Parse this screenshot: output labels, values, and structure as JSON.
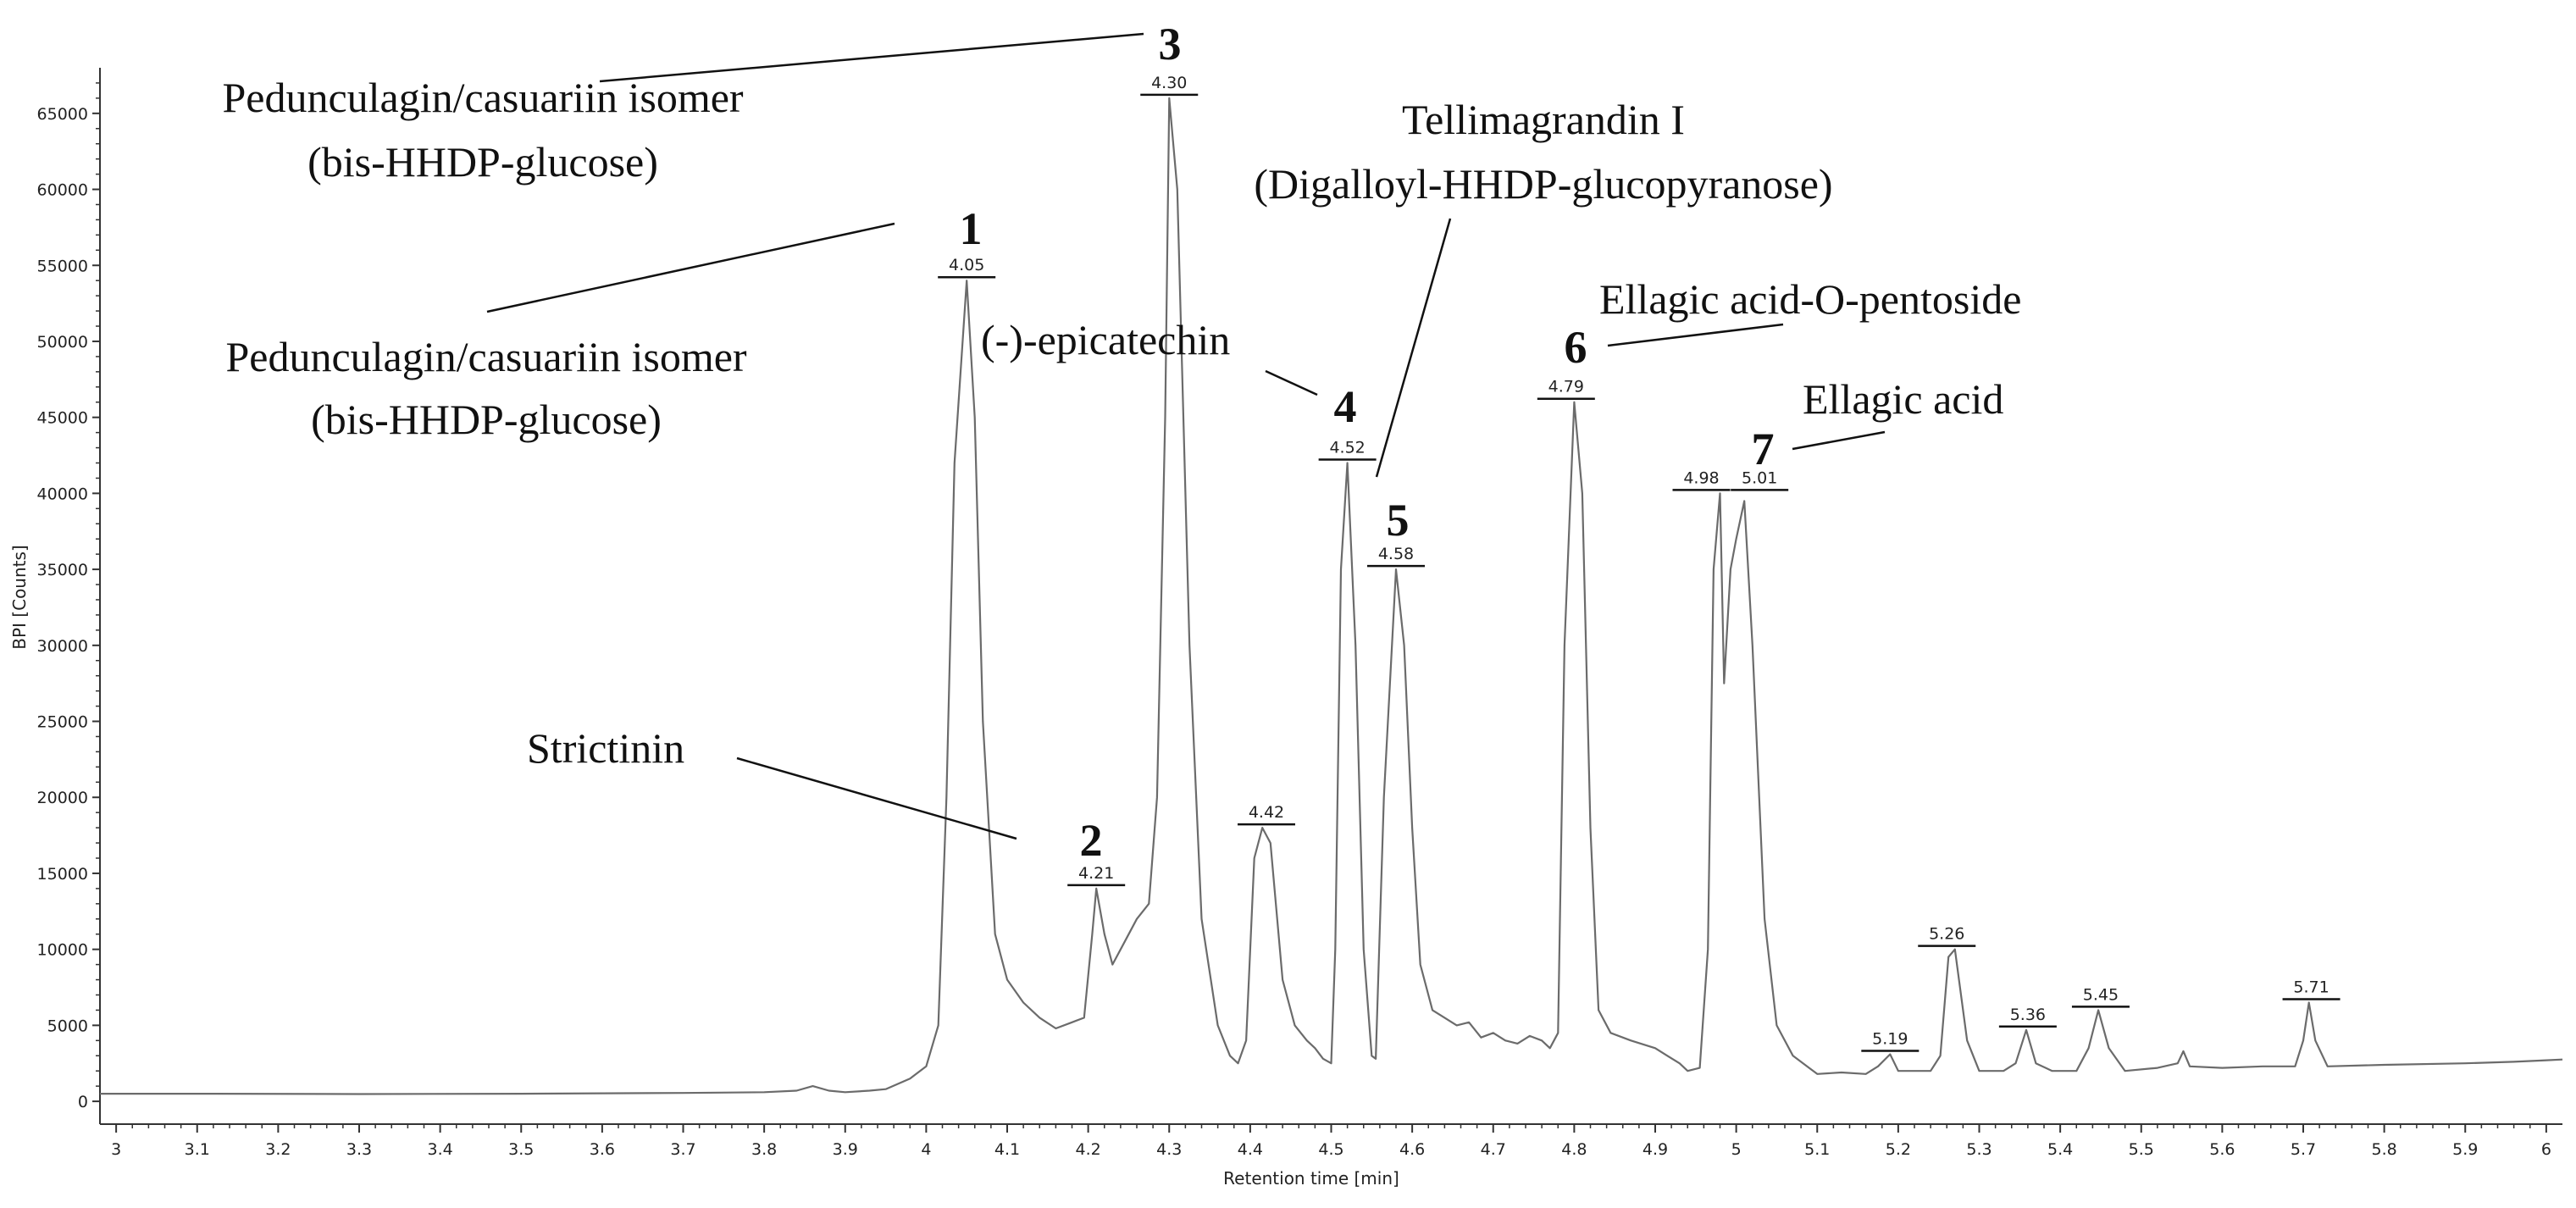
{
  "chart_data": {
    "type": "line",
    "xlabel": "Retention time [min]",
    "ylabel": "BPI [Counts]",
    "xlim": [
      2.98,
      6.02
    ],
    "ylim": [
      -1500,
      68000
    ],
    "x_ticks": [
      "3",
      "3.1",
      "3.2",
      "3.3",
      "3.4",
      "3.5",
      "3.6",
      "3.7",
      "3.8",
      "3.9",
      "4",
      "4.1",
      "4.2",
      "4.3",
      "4.4",
      "4.5",
      "4.6",
      "4.7",
      "4.8",
      "4.9",
      "5",
      "5.1",
      "5.2",
      "5.3",
      "5.4",
      "5.5",
      "5.6",
      "5.7",
      "5.8",
      "5.9",
      "6"
    ],
    "y_ticks": [
      "0",
      "5000",
      "10000",
      "15000",
      "20000",
      "25000",
      "30000",
      "35000",
      "40000",
      "45000",
      "50000",
      "55000",
      "60000",
      "65000"
    ],
    "series": [
      {
        "points": [
          [
            2.98,
            500
          ],
          [
            3.1,
            500
          ],
          [
            3.3,
            480
          ],
          [
            3.5,
            500
          ],
          [
            3.7,
            550
          ],
          [
            3.8,
            600
          ],
          [
            3.84,
            700
          ],
          [
            3.86,
            1000
          ],
          [
            3.88,
            700
          ],
          [
            3.9,
            600
          ],
          [
            3.93,
            700
          ],
          [
            3.95,
            800
          ],
          [
            3.98,
            1500
          ],
          [
            4.0,
            2300
          ],
          [
            4.015,
            5000
          ],
          [
            4.025,
            20000
          ],
          [
            4.035,
            42000
          ],
          [
            4.05,
            54000
          ],
          [
            4.06,
            45000
          ],
          [
            4.07,
            25000
          ],
          [
            4.085,
            11000
          ],
          [
            4.1,
            8000
          ],
          [
            4.12,
            6500
          ],
          [
            4.14,
            5500
          ],
          [
            4.16,
            4800
          ],
          [
            4.18,
            5200
          ],
          [
            4.195,
            5500
          ],
          [
            4.205,
            11000
          ],
          [
            4.21,
            14000
          ],
          [
            4.22,
            11000
          ],
          [
            4.23,
            9000
          ],
          [
            4.245,
            10500
          ],
          [
            4.26,
            12000
          ],
          [
            4.275,
            13000
          ],
          [
            4.285,
            20000
          ],
          [
            4.295,
            45000
          ],
          [
            4.3,
            66000
          ],
          [
            4.31,
            60000
          ],
          [
            4.325,
            30000
          ],
          [
            4.34,
            12000
          ],
          [
            4.36,
            5000
          ],
          [
            4.375,
            3000
          ],
          [
            4.385,
            2500
          ],
          [
            4.395,
            4000
          ],
          [
            4.405,
            16000
          ],
          [
            4.415,
            18000
          ],
          [
            4.425,
            17000
          ],
          [
            4.44,
            8000
          ],
          [
            4.455,
            5000
          ],
          [
            4.47,
            4000
          ],
          [
            4.48,
            3500
          ],
          [
            4.49,
            2800
          ],
          [
            4.5,
            2500
          ],
          [
            4.505,
            10000
          ],
          [
            4.512,
            35000
          ],
          [
            4.52,
            42000
          ],
          [
            4.53,
            30000
          ],
          [
            4.54,
            10000
          ],
          [
            4.55,
            3000
          ],
          [
            4.555,
            2800
          ],
          [
            4.565,
            20000
          ],
          [
            4.58,
            35000
          ],
          [
            4.59,
            30000
          ],
          [
            4.6,
            18000
          ],
          [
            4.61,
            9000
          ],
          [
            4.625,
            6000
          ],
          [
            4.64,
            5500
          ],
          [
            4.655,
            5000
          ],
          [
            4.67,
            5200
          ],
          [
            4.685,
            4200
          ],
          [
            4.7,
            4500
          ],
          [
            4.715,
            4000
          ],
          [
            4.73,
            3800
          ],
          [
            4.745,
            4300
          ],
          [
            4.76,
            4000
          ],
          [
            4.77,
            3500
          ],
          [
            4.78,
            4500
          ],
          [
            4.788,
            30000
          ],
          [
            4.8,
            46000
          ],
          [
            4.81,
            40000
          ],
          [
            4.82,
            18000
          ],
          [
            4.83,
            6000
          ],
          [
            4.845,
            4500
          ],
          [
            4.87,
            4000
          ],
          [
            4.9,
            3500
          ],
          [
            4.915,
            3000
          ],
          [
            4.93,
            2500
          ],
          [
            4.94,
            2000
          ],
          [
            4.955,
            2200
          ],
          [
            4.965,
            10000
          ],
          [
            4.972,
            35000
          ],
          [
            4.98,
            40000
          ],
          [
            4.985,
            27500
          ],
          [
            4.993,
            35000
          ],
          [
            5.0,
            37000
          ],
          [
            5.01,
            39500
          ],
          [
            5.02,
            30000
          ],
          [
            5.035,
            12000
          ],
          [
            5.05,
            5000
          ],
          [
            5.07,
            3000
          ],
          [
            5.09,
            2200
          ],
          [
            5.1,
            1800
          ],
          [
            5.13,
            1900
          ],
          [
            5.16,
            1800
          ],
          [
            5.175,
            2300
          ],
          [
            5.19,
            3100
          ],
          [
            5.2,
            2000
          ],
          [
            5.22,
            2000
          ],
          [
            5.24,
            2000
          ],
          [
            5.252,
            3000
          ],
          [
            5.262,
            9500
          ],
          [
            5.27,
            10000
          ],
          [
            5.285,
            4000
          ],
          [
            5.3,
            2000
          ],
          [
            5.33,
            2000
          ],
          [
            5.345,
            2500
          ],
          [
            5.358,
            4700
          ],
          [
            5.37,
            2500
          ],
          [
            5.39,
            2000
          ],
          [
            5.42,
            2000
          ],
          [
            5.435,
            3500
          ],
          [
            5.447,
            6000
          ],
          [
            5.46,
            3500
          ],
          [
            5.48,
            2000
          ],
          [
            5.52,
            2200
          ],
          [
            5.545,
            2500
          ],
          [
            5.552,
            3300
          ],
          [
            5.56,
            2300
          ],
          [
            5.6,
            2200
          ],
          [
            5.65,
            2300
          ],
          [
            5.69,
            2300
          ],
          [
            5.7,
            4000
          ],
          [
            5.707,
            6500
          ],
          [
            5.715,
            4000
          ],
          [
            5.73,
            2300
          ],
          [
            5.8,
            2400
          ],
          [
            5.9,
            2500
          ],
          [
            5.96,
            2600
          ],
          [
            6.0,
            2700
          ],
          [
            6.02,
            2750
          ]
        ]
      }
    ],
    "rt_labels": [
      {
        "x": 4.05,
        "y": 54000,
        "text": "4.05"
      },
      {
        "x": 4.21,
        "y": 14000,
        "text": "4.21"
      },
      {
        "x": 4.3,
        "y": 66000,
        "text": "4.30"
      },
      {
        "x": 4.42,
        "y": 18000,
        "text": "4.42"
      },
      {
        "x": 4.52,
        "y": 42000,
        "text": "4.52"
      },
      {
        "x": 4.58,
        "y": 35000,
        "text": "4.58"
      },
      {
        "x": 4.79,
        "y": 46000,
        "text": "4.79"
      },
      {
        "x": 4.98,
        "y": 40000,
        "text": "4.98"
      },
      {
        "x": 5.01,
        "y": 40000,
        "text": "5.01"
      },
      {
        "x": 5.19,
        "y": 3100,
        "text": "5.19"
      },
      {
        "x": 5.26,
        "y": 10000,
        "text": "5.26"
      },
      {
        "x": 5.36,
        "y": 4700,
        "text": "5.36"
      },
      {
        "x": 5.45,
        "y": 6000,
        "text": "5.45"
      },
      {
        "x": 5.71,
        "y": 6500,
        "text": "5.71"
      }
    ],
    "peak_numbers": [
      "1",
      "2",
      "3",
      "4",
      "5",
      "6",
      "7"
    ],
    "annotations": [
      "Pedunculagin/casuariin isomer",
      "(bis-HHDP-glucose)",
      "Pedunculagin/casuariin isomer",
      "(bis-HHDP-glucose)",
      "Tellimagrandin I",
      "(Digalloyl-HHDP-glucopyranose)",
      "Ellagic acid-O-pentoside",
      "(-)-epicatechin",
      "Ellagic acid",
      "Strictinin"
    ]
  }
}
